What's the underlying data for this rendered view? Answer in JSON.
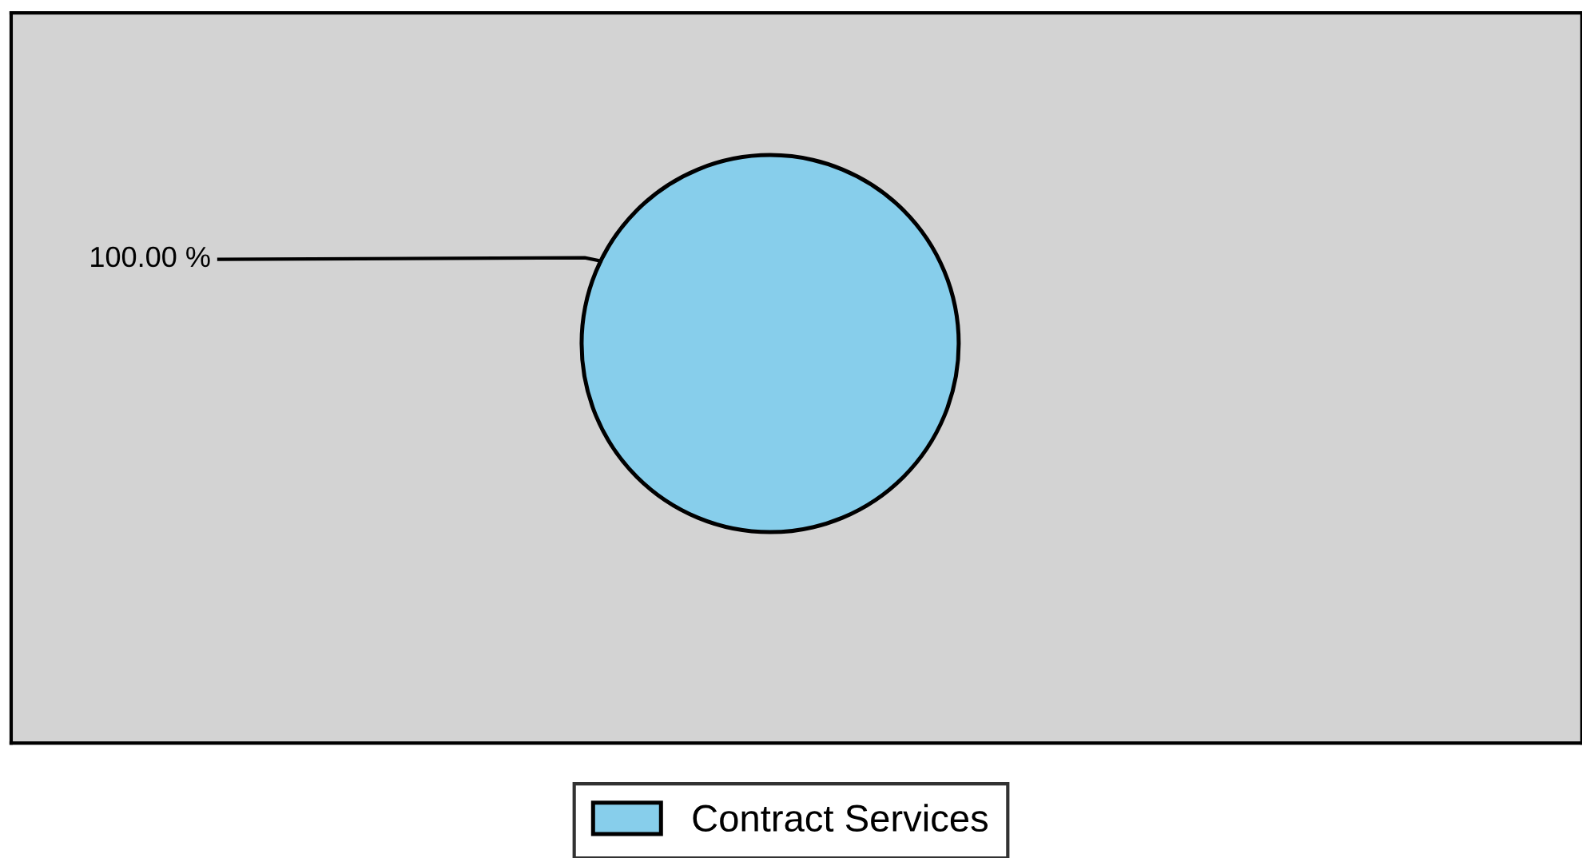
{
  "chart_data": {
    "type": "pie",
    "categories": [
      "Contract Services"
    ],
    "values": [
      100
    ],
    "colors": [
      "#87ceeb"
    ],
    "value_labels": [
      "100.00 %"
    ],
    "legend": "bottom"
  }
}
